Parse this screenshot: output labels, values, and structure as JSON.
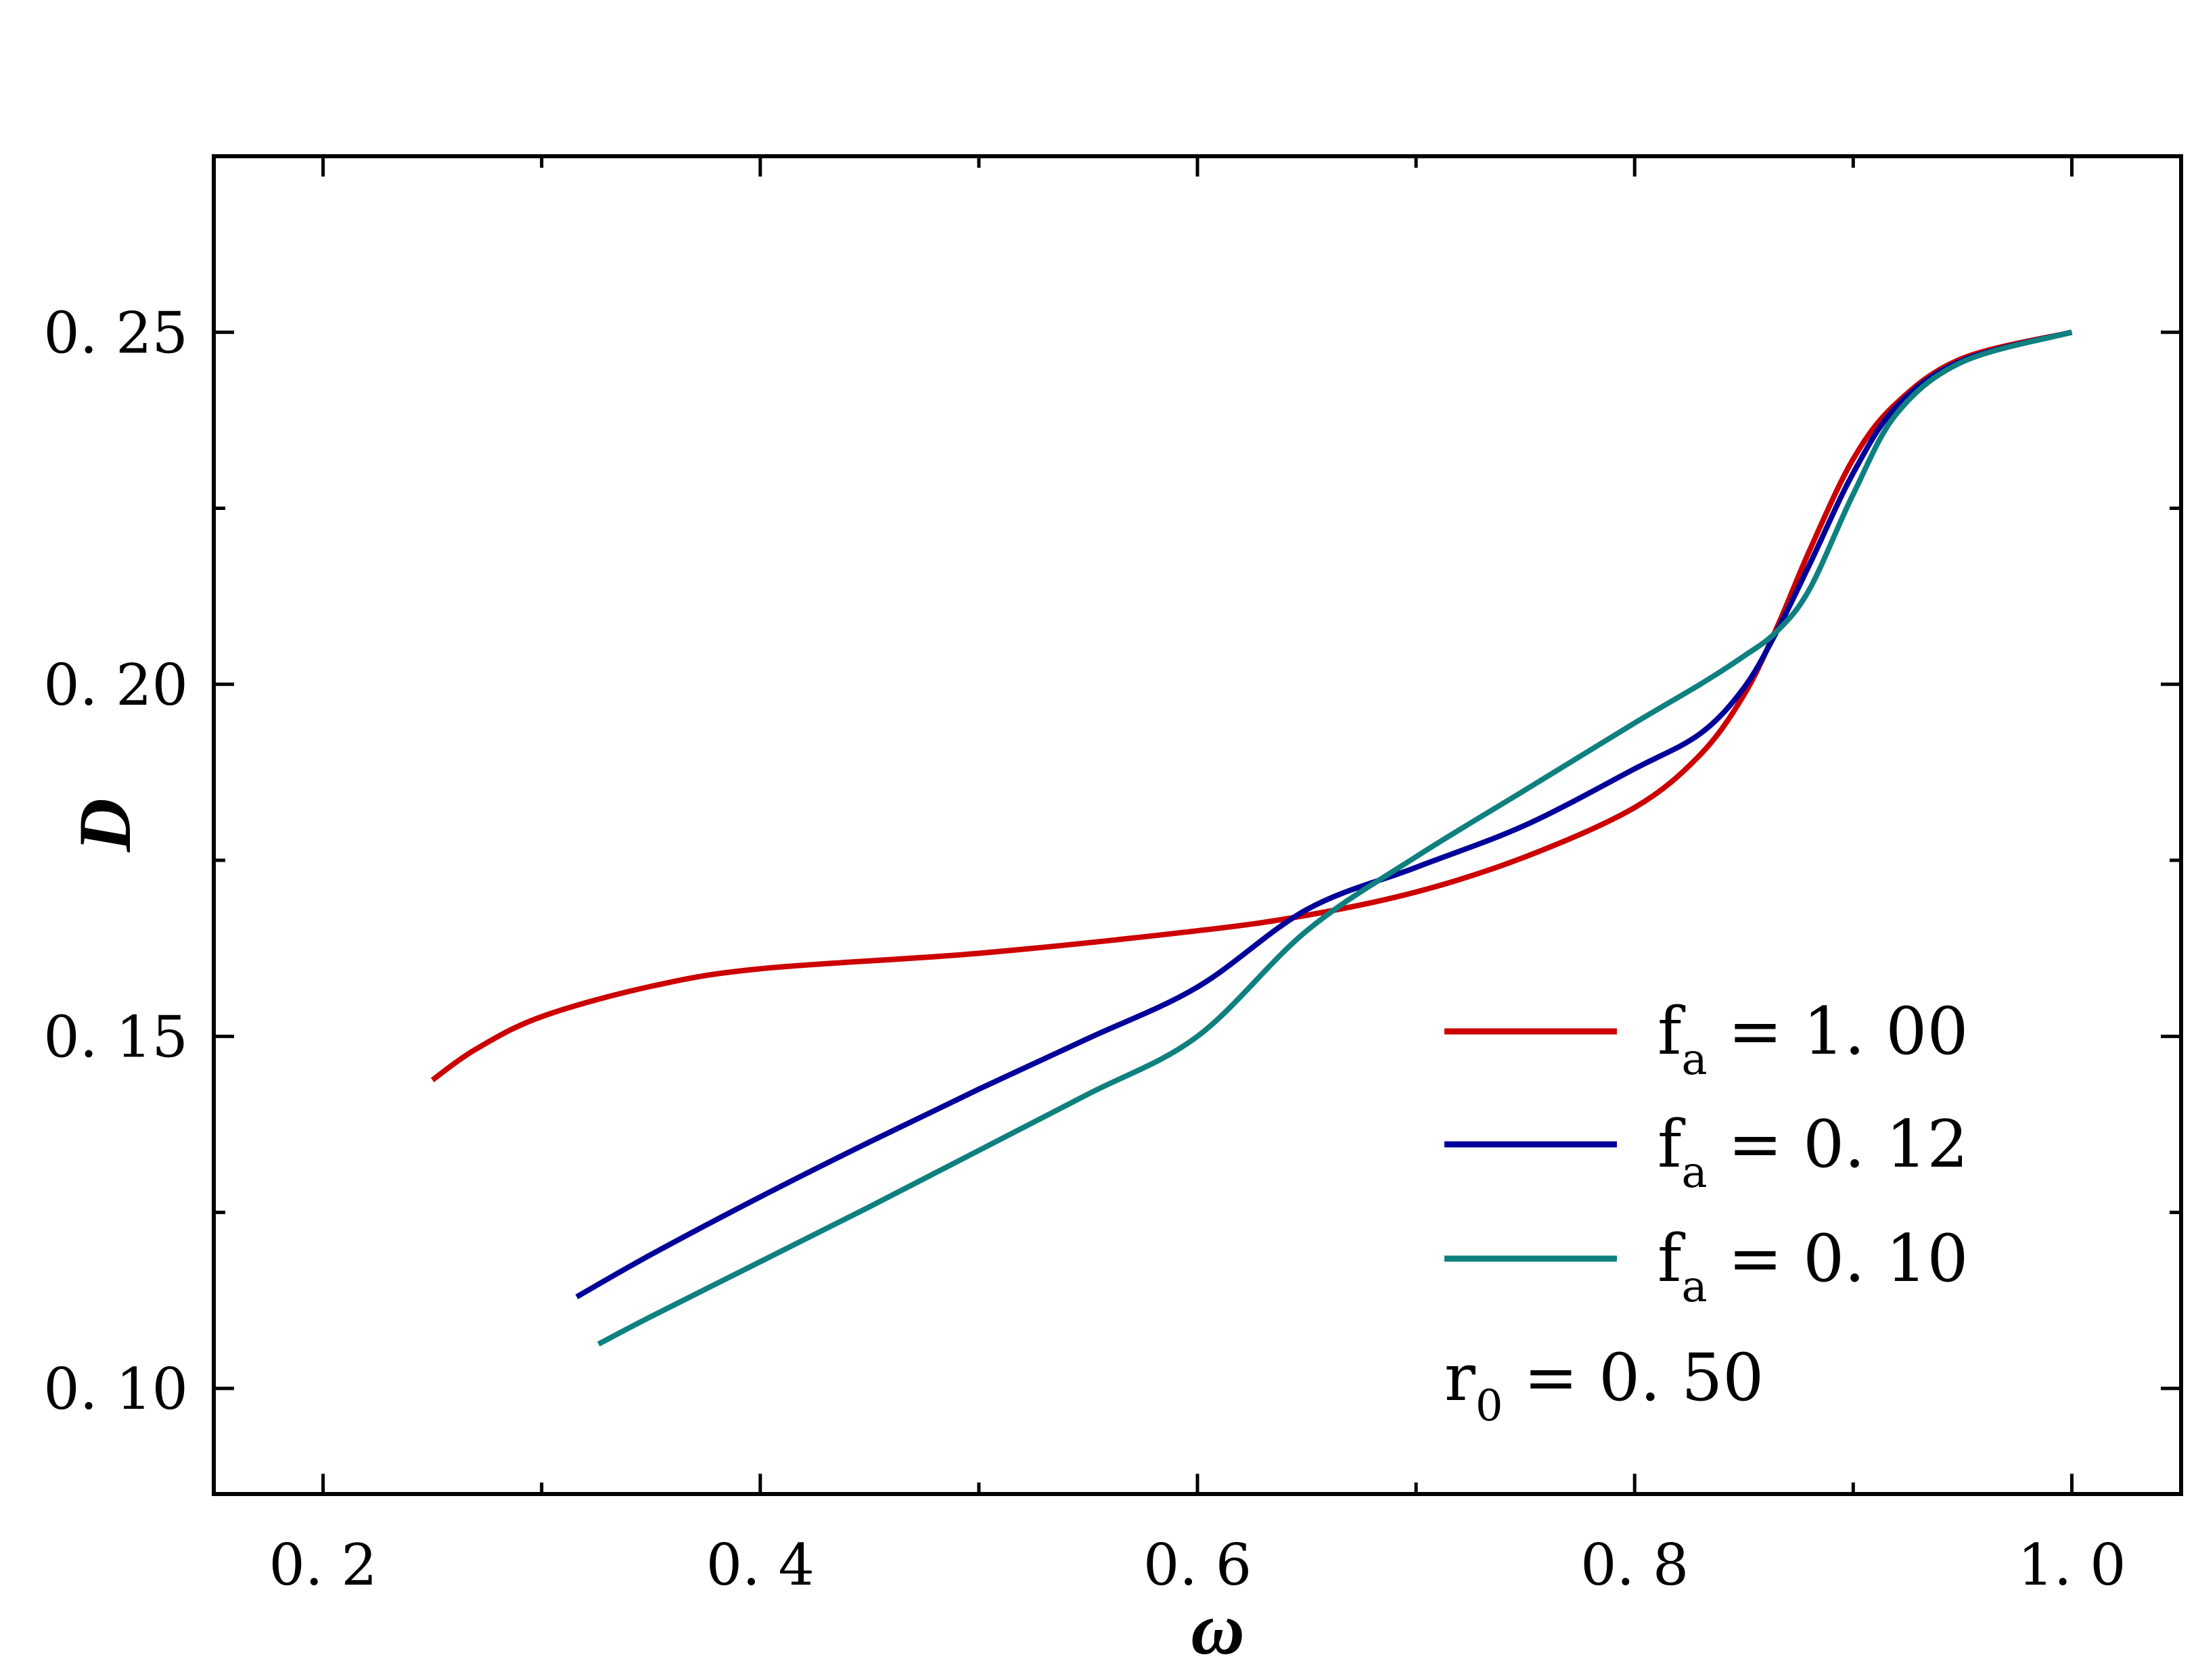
{
  "chart_data": {
    "type": "line",
    "xlabel": "ω",
    "ylabel": "D",
    "xlim": [
      0.15,
      1.05
    ],
    "ylim": [
      0.085,
      0.275
    ],
    "x_ticks": [
      0.2,
      0.4,
      0.6,
      0.8,
      1.0
    ],
    "x_tick_labels": [
      "0. 2",
      "0. 4",
      "0. 6",
      "0. 8",
      "1. 0"
    ],
    "y_ticks": [
      0.1,
      0.15,
      0.2,
      0.25
    ],
    "y_tick_labels": [
      "0. 10",
      "0. 15",
      "0. 20",
      "0. 25"
    ],
    "grid": false,
    "legend_position": "bottom-right",
    "series": [
      {
        "name_main": "f",
        "name_sub": "a",
        "name_rest": " =  1. 00",
        "color": "#cc0000",
        "x": [
          0.25,
          0.27,
          0.3,
          0.35,
          0.4,
          0.5,
          0.6,
          0.65,
          0.7,
          0.75,
          0.8,
          0.83,
          0.85,
          0.865,
          0.88,
          0.9,
          0.92,
          0.95,
          1.0
        ],
        "y": [
          0.1438,
          0.1482,
          0.1528,
          0.1571,
          0.1596,
          0.1618,
          0.165,
          0.1672,
          0.1705,
          0.1755,
          0.1825,
          0.19,
          0.1985,
          0.208,
          0.219,
          0.232,
          0.24,
          0.2463,
          0.25
        ]
      },
      {
        "name_main": "f",
        "name_sub": "a",
        "name_rest": " =  0. 12",
        "color": "#00009a",
        "x": [
          0.316,
          0.35,
          0.4,
          0.45,
          0.5,
          0.55,
          0.6,
          0.65,
          0.7,
          0.75,
          0.8,
          0.83,
          0.85,
          0.865,
          0.88,
          0.9,
          0.92,
          0.95,
          1.0
        ],
        "y": [
          0.113,
          0.119,
          0.1272,
          0.135,
          0.1425,
          0.1497,
          0.157,
          0.168,
          0.174,
          0.18,
          0.188,
          0.193,
          0.1995,
          0.2075,
          0.217,
          0.23,
          0.2395,
          0.246,
          0.25
        ]
      },
      {
        "name_main": "f",
        "name_sub": "a",
        "name_rest": " =  0. 10",
        "color": "#0f8080",
        "x": [
          0.326,
          0.35,
          0.4,
          0.45,
          0.5,
          0.55,
          0.6,
          0.65,
          0.7,
          0.75,
          0.8,
          0.83,
          0.85,
          0.865,
          0.88,
          0.9,
          0.92,
          0.95,
          1.0
        ],
        "y": [
          0.1063,
          0.1102,
          0.118,
          0.1258,
          0.1338,
          0.1418,
          0.15,
          0.165,
          0.1755,
          0.185,
          0.1945,
          0.2,
          0.204,
          0.2075,
          0.2135,
          0.227,
          0.2385,
          0.2458,
          0.25
        ]
      }
    ],
    "annotation_main": "r",
    "annotation_sub": "0",
    "annotation_rest": " =  0. 50"
  }
}
